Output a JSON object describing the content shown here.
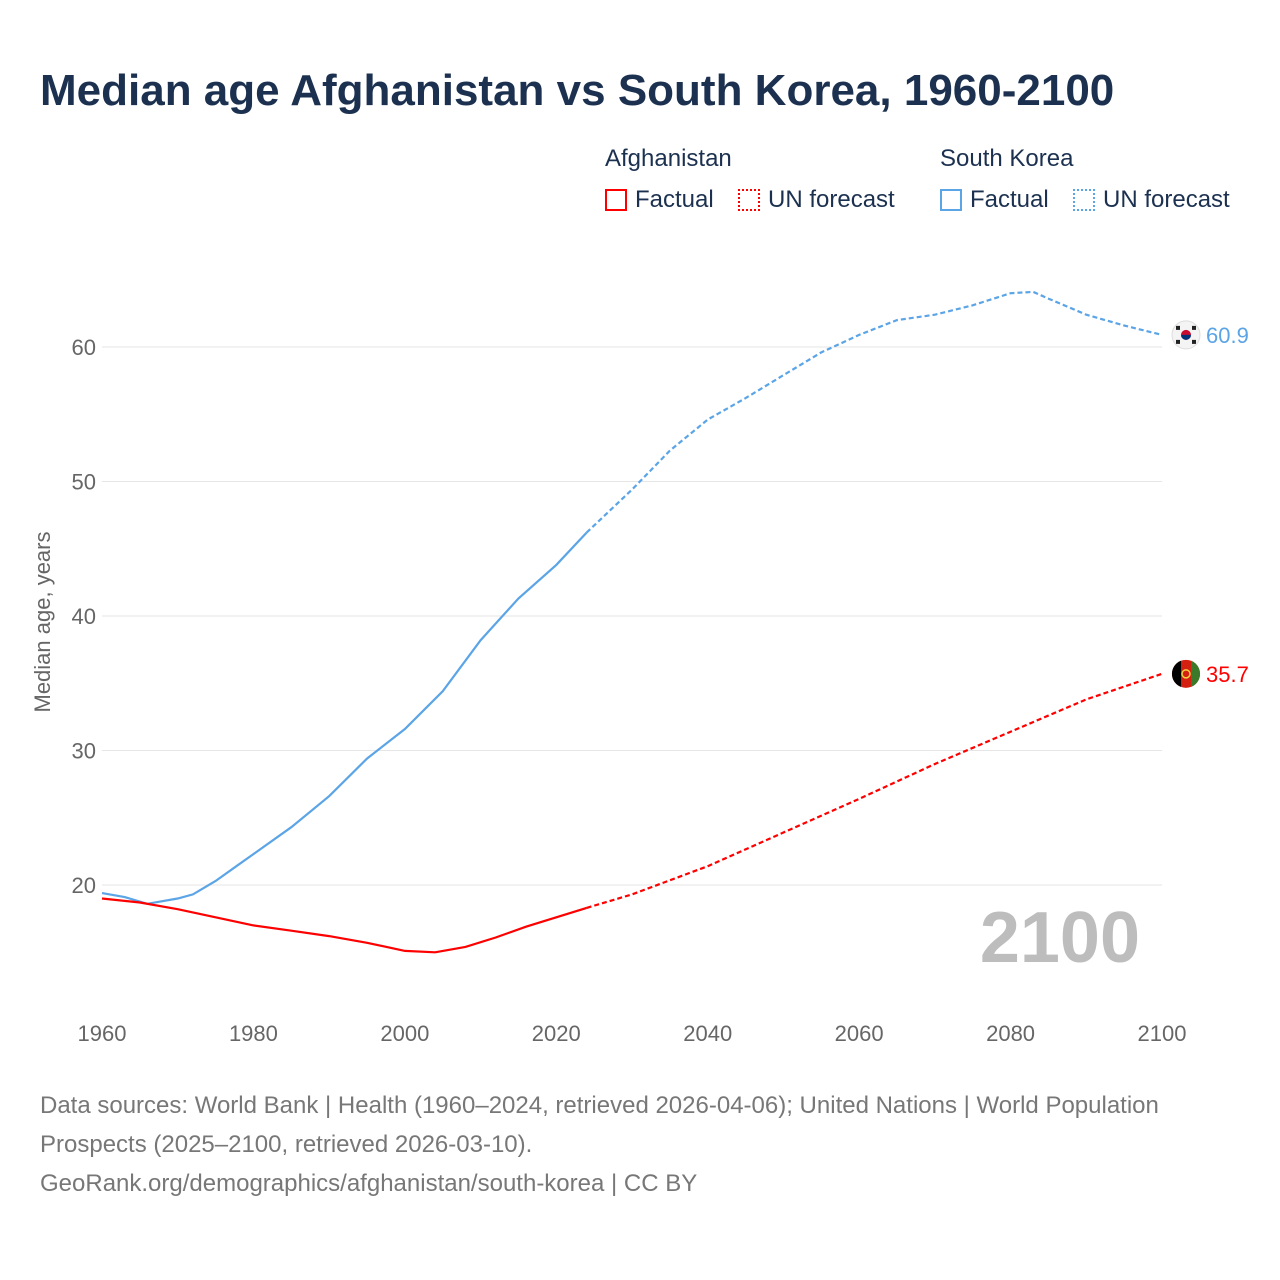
{
  "title": "Median age Afghanistan vs South Korea, 1960-2100",
  "legend": {
    "groups": [
      {
        "name": "Afghanistan",
        "color": "#ff0000",
        "factual": "Factual",
        "forecast": "UN forecast"
      },
      {
        "name": "South Korea",
        "color": "#5ba4e6",
        "factual": "Factual",
        "forecast": "UN forecast"
      }
    ]
  },
  "year_watermark": "2100",
  "footer": {
    "sources": "Data sources: World Bank | Health (1960–2024, retrieved 2026-04-06); United Nations | World Population Prospects (2025–2100, retrieved 2026-03-10).",
    "link": "GeoRank.org/demographics/afghanistan/south-korea | CC BY"
  },
  "chart_data": {
    "type": "line",
    "title": "Median age Afghanistan vs South Korea, 1960-2100",
    "xlabel": "",
    "ylabel": "Median age, years",
    "xlim": [
      1960,
      2100
    ],
    "ylim": [
      12.5,
      67
    ],
    "xticks": [
      1960,
      1980,
      2000,
      2020,
      2040,
      2060,
      2080,
      2100
    ],
    "yticks": [
      20,
      30,
      40,
      50,
      60
    ],
    "grid": true,
    "legend_position": "top-right",
    "factual_end_year": 2024,
    "series": [
      {
        "name": "South Korea",
        "color": "#5ba4e6",
        "end_label": "60.9",
        "x": [
          1960,
          1963,
          1966,
          1970,
          1972,
          1975,
          1978,
          1980,
          1985,
          1990,
          1995,
          2000,
          2005,
          2010,
          2015,
          2020,
          2024,
          2030,
          2035,
          2040,
          2045,
          2050,
          2055,
          2060,
          2065,
          2070,
          2075,
          2080,
          2083,
          2085,
          2090,
          2095,
          2100
        ],
        "y": [
          19.4,
          19.1,
          18.6,
          19.0,
          19.3,
          20.3,
          21.5,
          22.3,
          24.3,
          26.6,
          29.4,
          31.6,
          34.4,
          38.2,
          41.3,
          43.8,
          46.2,
          49.4,
          52.3,
          54.6,
          56.2,
          57.9,
          59.6,
          60.9,
          62.0,
          62.4,
          63.1,
          64.0,
          64.1,
          63.6,
          62.4,
          61.6,
          60.9
        ]
      },
      {
        "name": "Afghanistan",
        "color": "#ff0000",
        "end_label": "35.7",
        "x": [
          1960,
          1965,
          1970,
          1975,
          1980,
          1985,
          1990,
          1995,
          2000,
          2004,
          2008,
          2012,
          2016,
          2020,
          2024,
          2030,
          2040,
          2050,
          2060,
          2070,
          2080,
          2090,
          2100
        ],
        "y": [
          19.0,
          18.7,
          18.2,
          17.6,
          17.0,
          16.6,
          16.2,
          15.7,
          15.1,
          15.0,
          15.4,
          16.1,
          16.9,
          17.6,
          18.3,
          19.3,
          21.4,
          23.9,
          26.4,
          29.0,
          31.4,
          33.8,
          35.7
        ]
      }
    ]
  }
}
